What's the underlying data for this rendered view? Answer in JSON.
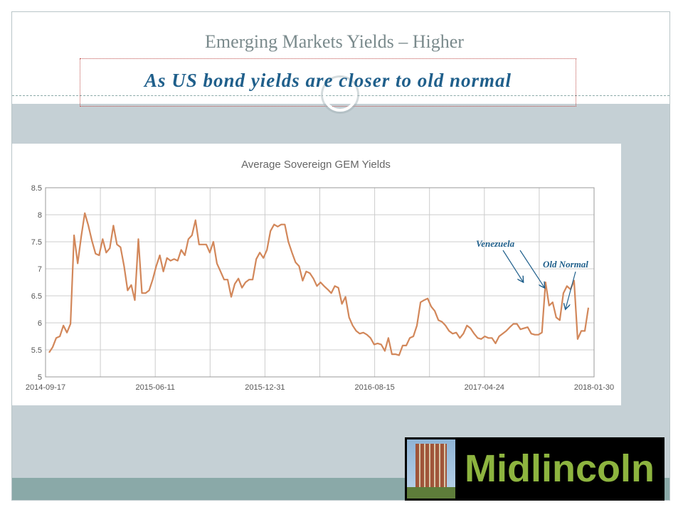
{
  "slide": {
    "title": "Emerging Markets Yields – Higher",
    "subtitle": "As US bond yields are closer to old normal"
  },
  "logo": {
    "text": "Midlincoln"
  },
  "colors": {
    "line": "#d2875a",
    "annotation": "#1f5f8b",
    "grid": "#cccccc"
  },
  "chart_data": {
    "type": "line",
    "title": "Average Sovereign GEM Yields",
    "xlabel": "",
    "ylabel": "",
    "ylim": [
      5,
      8.5
    ],
    "yticks": [
      "5",
      "5.5",
      "6",
      "6.5",
      "7",
      "7.5",
      "8",
      "8.5"
    ],
    "xtick_labels": [
      "2014-09-17",
      "2015-06-11",
      "2015-12-31",
      "2016-08-15",
      "2017-04-24",
      "2018-01-30"
    ],
    "grid": true,
    "series": [
      {
        "values": [
          5.45,
          5.55,
          5.72,
          5.75,
          5.95,
          5.82,
          5.98,
          7.62,
          7.1,
          7.6,
          8.03,
          7.8,
          7.52,
          7.28,
          7.25,
          7.55,
          7.3,
          7.38,
          7.8,
          7.45,
          7.4,
          7.05,
          6.6,
          6.7,
          6.42,
          7.55,
          6.55,
          6.55,
          6.6,
          6.8,
          7.05,
          7.25,
          6.95,
          7.2,
          7.15,
          7.18,
          7.15,
          7.35,
          7.25,
          7.55,
          7.62,
          7.9,
          7.45,
          7.45,
          7.45,
          7.3,
          7.5,
          7.1,
          6.95,
          6.8,
          6.8,
          6.48,
          6.72,
          6.82,
          6.65,
          6.75,
          6.8,
          6.8,
          7.18,
          7.3,
          7.2,
          7.35,
          7.7,
          7.82,
          7.78,
          7.82,
          7.82,
          7.5,
          7.3,
          7.12,
          7.05,
          6.78,
          6.95,
          6.92,
          6.82,
          6.68,
          6.75,
          6.68,
          6.62,
          6.55,
          6.68,
          6.65,
          6.35,
          6.48,
          6.1,
          5.95,
          5.85,
          5.8,
          5.82,
          5.78,
          5.72,
          5.6,
          5.62,
          5.6,
          5.48,
          5.72,
          5.42,
          5.42,
          5.4,
          5.58,
          5.58,
          5.72,
          5.75,
          5.95,
          6.38,
          6.42,
          6.45,
          6.3,
          6.22,
          6.05,
          6.02,
          5.95,
          5.85,
          5.8,
          5.82,
          5.72,
          5.8,
          5.95,
          5.9,
          5.8,
          5.72,
          5.7,
          5.75,
          5.72,
          5.72,
          5.62,
          5.75,
          5.8,
          5.85,
          5.92,
          5.98,
          5.98,
          5.88,
          5.9,
          5.92,
          5.8,
          5.78,
          5.78,
          5.82,
          6.75,
          6.32,
          6.38,
          6.1,
          6.05,
          6.55,
          6.68,
          6.62,
          6.78,
          5.7,
          5.85,
          5.85,
          6.28
        ]
      }
    ],
    "annotations": [
      "Venezuela",
      "Old Normal"
    ]
  }
}
